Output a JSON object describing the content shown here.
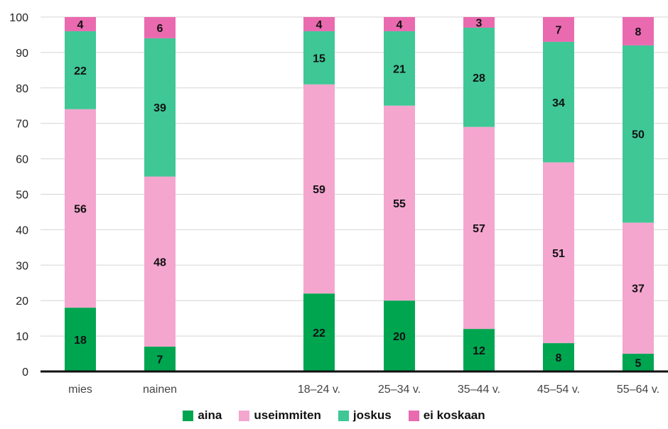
{
  "chart_data": {
    "type": "bar",
    "stacked": true,
    "categories": [
      "mies",
      "nainen",
      "",
      "18–24 v.",
      "25–34 v.",
      "35–44 v.",
      "45–54 v.",
      "55–64 v."
    ],
    "series": [
      {
        "name": "aina",
        "color": "#00a550",
        "values": [
          18,
          7,
          null,
          22,
          20,
          12,
          8,
          5
        ]
      },
      {
        "name": "useimmiten",
        "color": "#f4a6cf",
        "values": [
          56,
          48,
          null,
          59,
          55,
          57,
          51,
          37
        ]
      },
      {
        "name": "joskus",
        "color": "#3fc796",
        "values": [
          22,
          39,
          null,
          15,
          21,
          28,
          34,
          50
        ]
      },
      {
        "name": "ei koskaan",
        "color": "#ea6ab0",
        "values": [
          4,
          6,
          null,
          4,
          4,
          3,
          7,
          8
        ]
      }
    ],
    "ylim": [
      0,
      100
    ],
    "yticks": [
      0,
      10,
      20,
      30,
      40,
      50,
      60,
      70,
      80,
      90,
      100
    ],
    "grid": true,
    "legend_position": "bottom"
  }
}
